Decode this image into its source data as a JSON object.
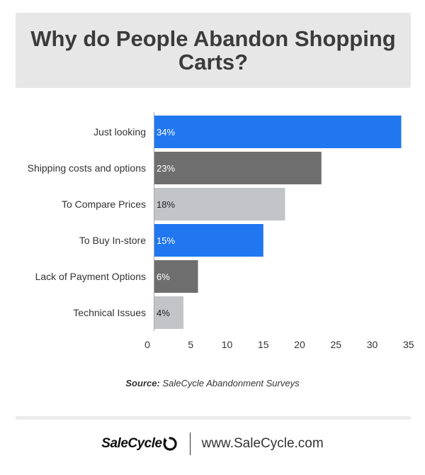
{
  "title": "Why do People Abandon Shopping Carts?",
  "source": {
    "label": "Source:",
    "text": "SaleCycle Abandonment Surveys"
  },
  "footer": {
    "brand": "SaleCycle",
    "url": "www.SaleCycle.com"
  },
  "colors": {
    "blue": "#2077f0",
    "dark": "#6e6e6e",
    "light": "#c2c4c7",
    "title_bg": "#e7e7e8"
  },
  "chart_data": {
    "type": "bar",
    "orientation": "horizontal",
    "categories": [
      "Just looking",
      "Shipping costs and options",
      "To Compare Prices",
      "To Buy In-store",
      "Lack of Payment Options",
      "Technical Issues"
    ],
    "values": [
      34,
      23,
      18,
      15,
      6,
      4
    ],
    "labels": [
      "34%",
      "23%",
      "18%",
      "15%",
      "6%",
      "4%"
    ],
    "bar_colors": [
      "#2077f0",
      "#6e6e6e",
      "#c2c4c7",
      "#2077f0",
      "#6e6e6e",
      "#c2c4c7"
    ],
    "label_colors": [
      "#ffffff",
      "#ffffff",
      "#222222",
      "#ffffff",
      "#ffffff",
      "#222222"
    ],
    "xticks": [
      0,
      5,
      10,
      15,
      20,
      25,
      30,
      35
    ],
    "xlim": [
      0,
      35
    ],
    "grid": false,
    "legend": "none"
  }
}
